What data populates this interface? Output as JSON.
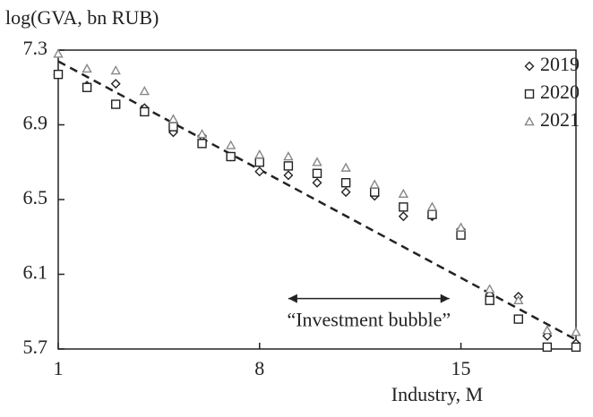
{
  "chart_data": {
    "type": "scatter",
    "y_label": "log(GVA, bn RUB)",
    "x_label": "Industry, M",
    "x": [
      1,
      2,
      3,
      4,
      5,
      6,
      7,
      8,
      9,
      10,
      11,
      12,
      13,
      14,
      15,
      16,
      17,
      18,
      19
    ],
    "series": [
      {
        "name": "2019",
        "marker": "diamond",
        "color": "#222222",
        "values": [
          7.17,
          7.11,
          7.12,
          6.99,
          6.86,
          6.84,
          6.73,
          6.65,
          6.63,
          6.59,
          6.54,
          6.52,
          6.41,
          6.41,
          6.34,
          5.99,
          5.98,
          5.77,
          5.73
        ]
      },
      {
        "name": "2020",
        "marker": "square",
        "color": "#222222",
        "values": [
          7.17,
          7.1,
          7.01,
          6.97,
          6.89,
          6.8,
          6.73,
          6.7,
          6.68,
          6.64,
          6.59,
          6.54,
          6.46,
          6.42,
          6.31,
          5.96,
          5.86,
          5.71,
          5.71
        ]
      },
      {
        "name": "2021",
        "marker": "triangle",
        "color": "#888888",
        "values": [
          7.28,
          7.2,
          7.19,
          7.08,
          6.93,
          6.85,
          6.79,
          6.74,
          6.73,
          6.7,
          6.67,
          6.58,
          6.53,
          6.46,
          6.35,
          6.02,
          5.96,
          5.8,
          5.79
        ]
      }
    ],
    "trend": {
      "x": [
        1,
        19
      ],
      "values": [
        7.24,
        5.75
      ],
      "color": "#222222"
    },
    "annotation": {
      "text": "“Investment bubble”",
      "x": [
        9,
        14.6
      ],
      "y": 5.97
    },
    "xlim": [
      1,
      19
    ],
    "ylim": [
      5.7,
      7.3
    ],
    "xticks": [
      1,
      8,
      15
    ],
    "yticks": [
      5.7,
      6.1,
      6.5,
      6.9,
      7.3
    ],
    "legend": "upper right"
  }
}
